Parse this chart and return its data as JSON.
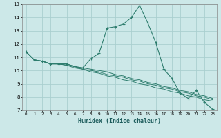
{
  "xlabel": "Humidex (Indice chaleur)",
  "x_values": [
    0,
    1,
    2,
    3,
    4,
    5,
    6,
    7,
    8,
    9,
    10,
    11,
    12,
    13,
    14,
    15,
    16,
    17,
    18,
    19,
    20,
    21,
    22,
    23
  ],
  "line1": [
    11.4,
    10.8,
    10.7,
    10.5,
    10.5,
    10.5,
    10.3,
    10.2,
    10.9,
    11.3,
    13.2,
    13.3,
    13.5,
    14.0,
    14.9,
    13.6,
    12.1,
    10.1,
    9.4,
    8.3,
    7.9,
    8.5,
    7.6,
    7.1
  ],
  "line2": [
    11.4,
    10.8,
    10.7,
    10.5,
    10.5,
    10.5,
    10.3,
    10.2,
    10.1,
    10.0,
    9.9,
    9.7,
    9.6,
    9.4,
    9.3,
    9.1,
    9.0,
    8.8,
    8.7,
    8.5,
    8.4,
    8.2,
    8.1,
    7.9
  ],
  "line3": [
    11.4,
    10.8,
    10.7,
    10.5,
    10.5,
    10.4,
    10.3,
    10.1,
    10.0,
    9.9,
    9.7,
    9.6,
    9.5,
    9.3,
    9.2,
    9.0,
    8.9,
    8.7,
    8.6,
    8.4,
    8.3,
    8.1,
    8.0,
    7.8
  ],
  "line4": [
    11.4,
    10.8,
    10.7,
    10.5,
    10.5,
    10.4,
    10.2,
    10.1,
    9.9,
    9.8,
    9.6,
    9.5,
    9.3,
    9.2,
    9.0,
    8.9,
    8.7,
    8.6,
    8.4,
    8.3,
    8.1,
    8.0,
    7.8,
    7.7
  ],
  "line_color": "#2e7d6e",
  "bg_color": "#cce8e8",
  "grid_color": "#aacfcf",
  "ylim": [
    7,
    15
  ],
  "yticks": [
    7,
    8,
    9,
    10,
    11,
    12,
    13,
    14,
    15
  ],
  "xlim_min": -0.5,
  "xlim_max": 23.5,
  "xtick_labels": [
    "0",
    "1",
    "2",
    "3",
    "4",
    "5",
    "6",
    "7",
    "8",
    "9",
    "10",
    "11",
    "12",
    "13",
    "14",
    "15",
    "16",
    "17",
    "18",
    "19",
    "20",
    "21",
    "22",
    "23"
  ]
}
